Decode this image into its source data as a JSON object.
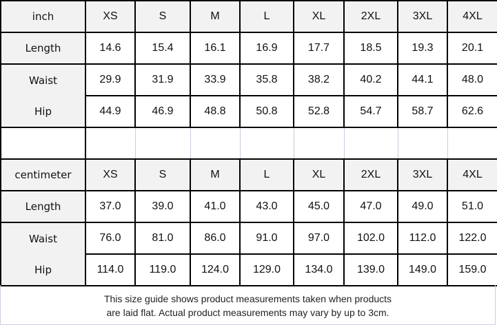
{
  "sizes": [
    "XS",
    "S",
    "M",
    "L",
    "XL",
    "2XL",
    "3XL",
    "4XL"
  ],
  "tables": [
    {
      "unit": "inch",
      "rows": [
        {
          "label": "Length",
          "values": [
            "14.6",
            "15.4",
            "16.1",
            "16.9",
            "17.7",
            "18.5",
            "19.3",
            "20.1"
          ]
        },
        {
          "label": "Waist",
          "values": [
            "29.9",
            "31.9",
            "33.9",
            "35.8",
            "38.2",
            "40.2",
            "44.1",
            "48.0"
          ]
        },
        {
          "label": "Hip",
          "values": [
            "44.9",
            "46.9",
            "48.8",
            "50.8",
            "52.8",
            "54.7",
            "58.7",
            "62.6"
          ]
        }
      ]
    },
    {
      "unit": "centimeter",
      "rows": [
        {
          "label": "Length",
          "values": [
            "37.0",
            "39.0",
            "41.0",
            "43.0",
            "45.0",
            "47.0",
            "49.0",
            "51.0"
          ]
        },
        {
          "label": "Waist",
          "values": [
            "76.0",
            "81.0",
            "86.0",
            "91.0",
            "97.0",
            "102.0",
            "112.0",
            "122.0"
          ]
        },
        {
          "label": "Hip",
          "values": [
            "114.0",
            "119.0",
            "124.0",
            "129.0",
            "134.0",
            "139.0",
            "149.0",
            "159.0"
          ]
        }
      ]
    }
  ],
  "caption": {
    "line1": "This size guide shows product measurements taken when products",
    "line2": "are laid flat. Actual product measurements may vary by up to 3cm."
  },
  "colors": {
    "header_bg": "#f2f2f2",
    "border": "#000000"
  }
}
